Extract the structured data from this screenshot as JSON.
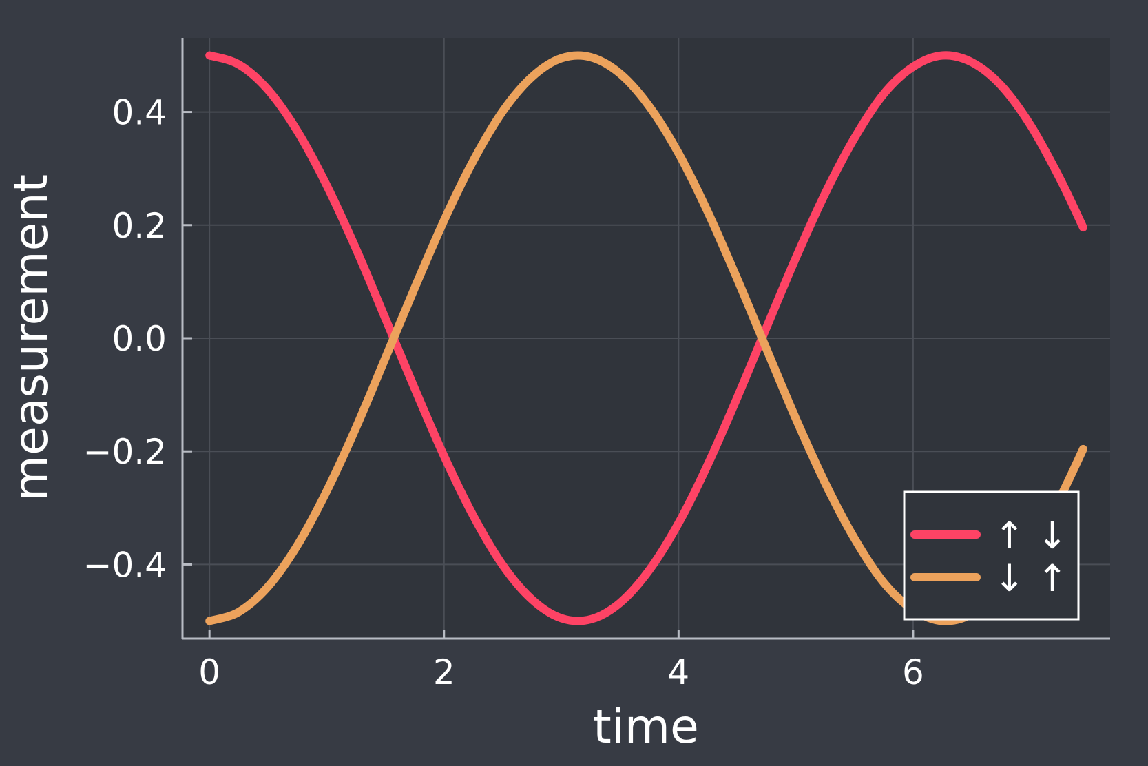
{
  "chart_data": {
    "type": "line",
    "title": "",
    "xlabel": "time",
    "ylabel": "measurement",
    "xlim": [
      -0.23,
      7.68
    ],
    "ylim": [
      -0.531,
      0.531
    ],
    "xticks": [
      0,
      2,
      4,
      6
    ],
    "xtick_labels": [
      "0",
      "2",
      "4",
      "6"
    ],
    "yticks": [
      -0.4,
      -0.2,
      0.0,
      0.2,
      0.4
    ],
    "ytick_labels": [
      "−0.4",
      "−0.2",
      "0.0",
      "0.2",
      "0.4"
    ],
    "grid": true,
    "legend_position": "bottom-right",
    "x": [
      0.0,
      0.25,
      0.5,
      0.75,
      1.0,
      1.25,
      1.5,
      1.75,
      2.0,
      2.25,
      2.5,
      2.75,
      3.0,
      3.25,
      3.5,
      3.75,
      4.0,
      4.25,
      4.5,
      4.75,
      5.0,
      5.25,
      5.5,
      5.75,
      6.0,
      6.25,
      6.5,
      6.75,
      7.0,
      7.25,
      7.45
    ],
    "series": [
      {
        "name": "↑ ↓",
        "color": "#fe4365",
        "values": [
          0.5,
          0.484,
          0.439,
          0.366,
          0.27,
          0.158,
          0.035,
          -0.089,
          -0.208,
          -0.314,
          -0.401,
          -0.462,
          -0.495,
          -0.497,
          -0.468,
          -0.41,
          -0.327,
          -0.223,
          -0.105,
          0.019,
          0.142,
          0.256,
          0.354,
          0.432,
          0.48,
          0.5,
          0.488,
          0.447,
          0.377,
          0.283,
          0.196
        ]
      },
      {
        "name": "↓ ↑",
        "color": "#eca25c",
        "values": [
          -0.5,
          -0.484,
          -0.439,
          -0.366,
          -0.27,
          -0.158,
          -0.035,
          0.089,
          0.208,
          0.314,
          0.401,
          0.462,
          0.495,
          0.497,
          0.468,
          0.41,
          0.327,
          0.223,
          0.105,
          -0.019,
          -0.142,
          -0.256,
          -0.354,
          -0.432,
          -0.48,
          -0.5,
          -0.488,
          -0.447,
          -0.377,
          -0.283,
          -0.196
        ]
      }
    ]
  },
  "colors": {
    "background": "#373b44",
    "plot_area": "#30343b",
    "grid": "#4a4e56",
    "axis": "#b8bcc4",
    "legend_border": "#ffffff"
  }
}
